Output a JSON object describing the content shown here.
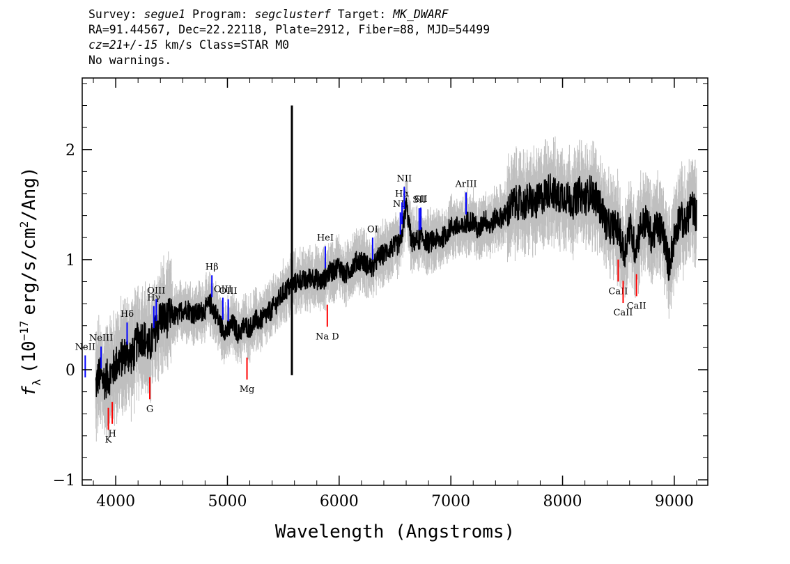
{
  "header": {
    "line1": {
      "survey_label": "Survey: ",
      "survey": "segue1",
      "program_label": " Program: ",
      "program": "segclusterf",
      "target_label": " Target: ",
      "target": "MK_DWARF"
    },
    "line2": "RA=91.44567, Dec=22.22118, Plate=2912, Fiber=88, MJD=54499",
    "line3": {
      "cz": "cz=21+/-15",
      "rest": " km/s Class=STAR M0"
    },
    "line4": "No warnings."
  },
  "chart_data": {
    "type": "line",
    "xlabel": "Wavelength (Angstroms)",
    "ylabel": {
      "f": "f",
      "sub": "λ",
      "open": "(10",
      "exp": "−17",
      "units": "erg/s/cm",
      "exp2": "2",
      "tail": "/Ang)"
    },
    "xlim": [
      3700,
      9300
    ],
    "ylim": [
      -1.05,
      2.65
    ],
    "xticks": [
      4000,
      5000,
      6000,
      7000,
      8000,
      9000
    ],
    "yticks": [
      -1,
      0,
      1,
      2
    ],
    "colors": {
      "flux": "#000000",
      "error_band": "#bfbfbf",
      "emission": "#0000ff",
      "absorption": "#ff0000"
    },
    "series": [
      {
        "x": [
          3820,
          3850,
          3900,
          3950,
          4000,
          4050,
          4100,
          4150,
          4200,
          4250,
          4300,
          4350,
          4400,
          4450,
          4500,
          4550,
          4600,
          4650,
          4700,
          4750,
          4800,
          4850,
          4900,
          4950,
          5000,
          5050,
          5100,
          5150,
          5200,
          5250,
          5300,
          5350,
          5400,
          5450,
          5500,
          5550,
          5600,
          5650,
          5700,
          5750,
          5800,
          5850,
          5900,
          5950,
          6000,
          6050,
          6100,
          6150,
          6200,
          6250,
          6300,
          6350,
          6400,
          6450,
          6500,
          6550,
          6600,
          6650,
          6700,
          6750,
          6800,
          6850,
          6900,
          6950,
          7000,
          7050,
          7100,
          7150,
          7200,
          7250,
          7300,
          7350,
          7400,
          7450,
          7500,
          7550,
          7600,
          7650,
          7700,
          7750,
          7800,
          7850,
          7900,
          7950,
          8000,
          8050,
          8100,
          8150,
          8200,
          8250,
          8300,
          8350,
          8400,
          8450,
          8500,
          8550,
          8600,
          8650,
          8700,
          8750,
          8800,
          8850,
          8900,
          8950,
          9000,
          9050,
          9100,
          9150,
          9200
        ],
        "y": [
          -0.15,
          -0.05,
          -0.1,
          -0.05,
          0.05,
          0.1,
          0.15,
          0.12,
          0.28,
          0.3,
          0.2,
          0.32,
          0.48,
          0.45,
          0.5,
          0.48,
          0.55,
          0.55,
          0.5,
          0.52,
          0.55,
          0.6,
          0.5,
          0.38,
          0.35,
          0.42,
          0.32,
          0.4,
          0.38,
          0.45,
          0.45,
          0.5,
          0.55,
          0.62,
          0.7,
          0.75,
          0.78,
          0.82,
          0.8,
          0.85,
          0.82,
          0.8,
          0.88,
          0.9,
          0.95,
          0.85,
          0.92,
          0.98,
          1.0,
          0.95,
          0.92,
          1.02,
          1.05,
          1.1,
          1.12,
          1.15,
          1.5,
          1.15,
          1.18,
          1.2,
          1.15,
          1.18,
          1.18,
          1.22,
          1.3,
          1.3,
          1.28,
          1.35,
          1.35,
          1.25,
          1.38,
          1.3,
          1.38,
          1.38,
          1.42,
          1.5,
          1.52,
          1.5,
          1.55,
          1.5,
          1.55,
          1.6,
          1.65,
          1.55,
          1.6,
          1.55,
          1.52,
          1.6,
          1.55,
          1.62,
          1.55,
          1.45,
          1.3,
          1.3,
          1.28,
          1.05,
          1.3,
          1.1,
          1.3,
          1.35,
          1.2,
          1.3,
          1.25,
          0.95,
          1.2,
          1.4,
          1.3,
          1.5,
          1.4
        ]
      }
    ],
    "emission_lines": [
      {
        "label": "NeII",
        "x": 3727
      },
      {
        "label": "NeIII",
        "x": 3869
      },
      {
        "label": "Hδ",
        "x": 4102
      },
      {
        "label": "Hγ",
        "x": 4341
      },
      {
        "label": "OIII",
        "x": 4363
      },
      {
        "label": "Hβ",
        "x": 4861
      },
      {
        "label": "OIII",
        "x": 4959
      },
      {
        "label": "OIII",
        "x": 5007
      },
      {
        "label": "HeI",
        "x": 5876
      },
      {
        "label": "OI",
        "x": 6300
      },
      {
        "label": "NII",
        "x": 6548
      },
      {
        "label": "Hα",
        "x": 6563
      },
      {
        "label": "NII",
        "x": 6583
      },
      {
        "label": "SII",
        "x": 6717
      },
      {
        "label": "SII",
        "x": 6731
      },
      {
        "label": "ArIII",
        "x": 7136
      }
    ],
    "absorption_lines": [
      {
        "label": "K",
        "x": 3934
      },
      {
        "label": "H",
        "x": 3969
      },
      {
        "label": "G",
        "x": 4305
      },
      {
        "label": "Mg",
        "x": 5175
      },
      {
        "label": "Na D",
        "x": 5894
      },
      {
        "label": "CaII",
        "x": 8498
      },
      {
        "label": "CaII",
        "x": 8542
      },
      {
        "label": "CaII",
        "x": 8662
      }
    ],
    "skyline": {
      "x": 5577,
      "y_min": -0.05,
      "y_max": 2.4
    }
  }
}
